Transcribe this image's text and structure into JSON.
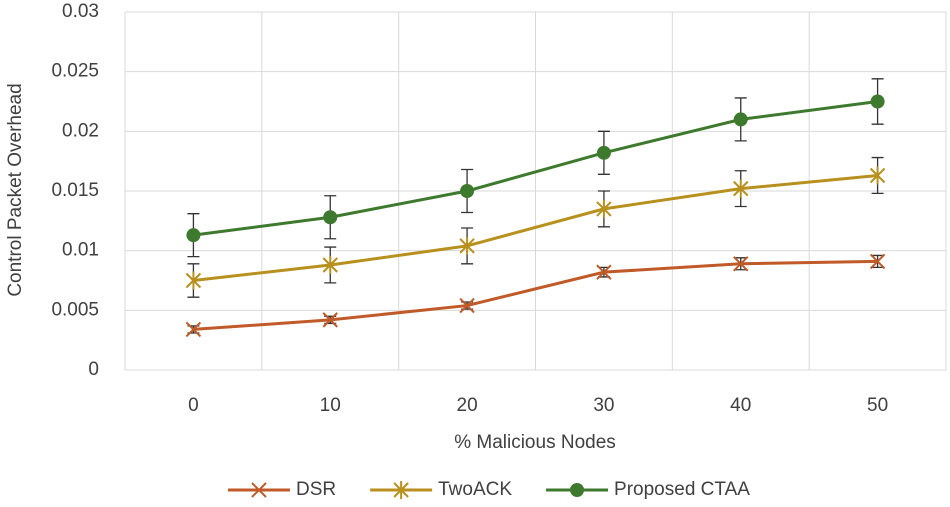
{
  "chart_data": {
    "type": "line",
    "x_label": "% Malicious Nodes",
    "y_label": "Control Packet Overhead",
    "categories": [
      0,
      10,
      20,
      30,
      40,
      50
    ],
    "series": [
      {
        "name": "DSR",
        "color": "#c05a28",
        "marker": "x",
        "values": [
          0.0034,
          0.0042,
          0.0054,
          0.0082,
          0.0089,
          0.0091
        ],
        "errors": [
          0.0003,
          0.0003,
          0.0003,
          0.0004,
          0.0005,
          0.0005
        ]
      },
      {
        "name": "TwoACK",
        "color": "#b8901e",
        "marker": "star",
        "values": [
          0.0075,
          0.0088,
          0.0104,
          0.0135,
          0.0152,
          0.0163
        ],
        "errors": [
          0.0014,
          0.0015,
          0.0015,
          0.0015,
          0.0015,
          0.0015
        ]
      },
      {
        "name": "Proposed CTAA",
        "color": "#3e7a2e",
        "marker": "circle",
        "values": [
          0.0113,
          0.0128,
          0.015,
          0.0182,
          0.021,
          0.0225
        ],
        "errors": [
          0.0018,
          0.0018,
          0.0018,
          0.0018,
          0.0018,
          0.0019
        ]
      }
    ],
    "ylim": [
      0,
      0.03
    ],
    "yticks": [
      0,
      0.005,
      0.01,
      0.015,
      0.02,
      0.025,
      0.03
    ],
    "grid": true,
    "legend": "bottom"
  }
}
